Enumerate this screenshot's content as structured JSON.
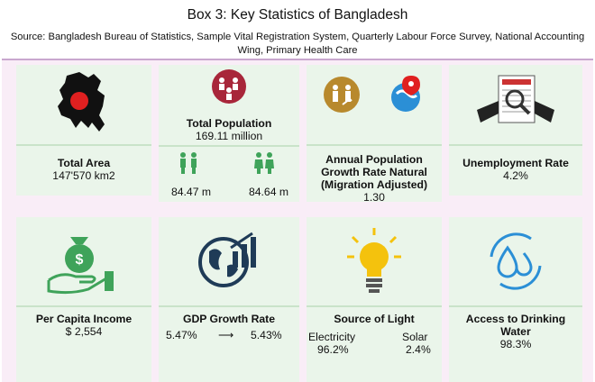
{
  "header": {
    "title": "Box 3: Key Statistics of Bangladesh",
    "source": "Source: Bangladesh Bureau of Statistics, Sample Vital Registration System, Quarterly Labour Force Survey, National Accounting Wing, Primary Health Care"
  },
  "cards": {
    "area": {
      "label": "Total Area",
      "value": "147'570 km2",
      "icon": "bangladesh-map-icon"
    },
    "population": {
      "label": "Total Population",
      "value": "169.11 million",
      "male": "84.47 m",
      "female": "84.64 m",
      "icon": "people-group-icon"
    },
    "growth": {
      "label_line1": "Annual Population",
      "label_line2": "Growth Rate Natural",
      "label_line3": "(Migration Adjusted)",
      "value": "1.30",
      "icon": "migration-globe-icon"
    },
    "unemployment": {
      "label": "Unemployment Rate",
      "value": "4.2%",
      "icon": "jobs-newspaper-icon"
    },
    "income": {
      "label": "Per Capita Income",
      "value": "$ 2,554",
      "icon": "money-bag-hand-icon"
    },
    "gdp": {
      "label": "GDP Growth Rate",
      "from": "5.47%",
      "to": "5.43%",
      "arrow": "⟶",
      "icon": "globe-chart-icon"
    },
    "light": {
      "label": "Source of Light",
      "electricity_label": "Electricity",
      "electricity_value": "96.2%",
      "solar_label": "Solar",
      "solar_value": "2.4%",
      "icon": "lightbulb-icon"
    },
    "water": {
      "label_line1": "Access to Drinking",
      "label_line2": "Water",
      "value": "98.3%",
      "icon": "water-drops-icon"
    }
  },
  "colors": {
    "card_bg": "#eaf5ea",
    "frame_bg": "#f9edf7",
    "accent_red": "#e02020",
    "accent_green": "#3fa35a",
    "accent_brown": "#b8892d",
    "accent_blue": "#2b8fd6",
    "accent_yellow": "#f4c20d"
  }
}
